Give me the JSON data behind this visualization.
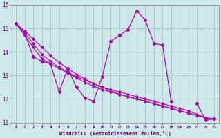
{
  "xlabel": "Windchill (Refroidissement éolien,°C)",
  "xlim": [
    -0.5,
    23.5
  ],
  "ylim": [
    11,
    16
  ],
  "yticks": [
    11,
    12,
    13,
    14,
    15,
    16
  ],
  "xticks": [
    0,
    1,
    2,
    3,
    4,
    5,
    6,
    7,
    8,
    9,
    10,
    11,
    12,
    13,
    14,
    15,
    16,
    17,
    18,
    19,
    20,
    21,
    22,
    23
  ],
  "background_color": "#cce8e8",
  "line_color": "#aa00aa",
  "grid_color": "#aacccc",
  "series": {
    "main": [
      15.2,
      14.8,
      13.8,
      13.6,
      13.5,
      12.3,
      13.3,
      12.5,
      12.05,
      11.9,
      12.95,
      14.45,
      14.7,
      14.95,
      15.75,
      15.35,
      14.35,
      14.3,
      11.9,
      null,
      null,
      11.8,
      11.1,
      11.15
    ],
    "s2": [
      15.2,
      null,
      13.8,
      null,
      13.5,
      null,
      13.3,
      null,
      null,
      null,
      null,
      null,
      null,
      null,
      null,
      null,
      null,
      null,
      null,
      null,
      null,
      11.1,
      11.0,
      11.15
    ],
    "trend1": [
      15.2,
      14.7,
      14.2,
      13.7,
      13.5,
      13.3,
      13.1,
      12.9,
      12.7,
      12.55,
      12.4,
      12.3,
      12.2,
      12.1,
      12.0,
      11.9,
      11.8,
      11.7,
      11.6,
      11.5,
      11.4,
      11.3,
      11.2,
      11.15
    ],
    "trend2": [
      15.2,
      14.8,
      14.35,
      13.9,
      13.6,
      13.35,
      13.15,
      12.95,
      12.8,
      12.65,
      12.5,
      12.4,
      12.3,
      12.2,
      12.1,
      12.0,
      11.9,
      11.8,
      11.7,
      11.6,
      11.5,
      11.35,
      11.2,
      11.15
    ],
    "trend3": [
      15.2,
      14.9,
      14.55,
      14.2,
      13.85,
      13.55,
      13.3,
      13.05,
      12.85,
      12.65,
      12.5,
      12.35,
      12.2,
      12.1,
      12.0,
      11.9,
      11.8,
      11.7,
      11.6,
      11.5,
      11.4,
      11.3,
      11.2,
      11.15
    ]
  }
}
